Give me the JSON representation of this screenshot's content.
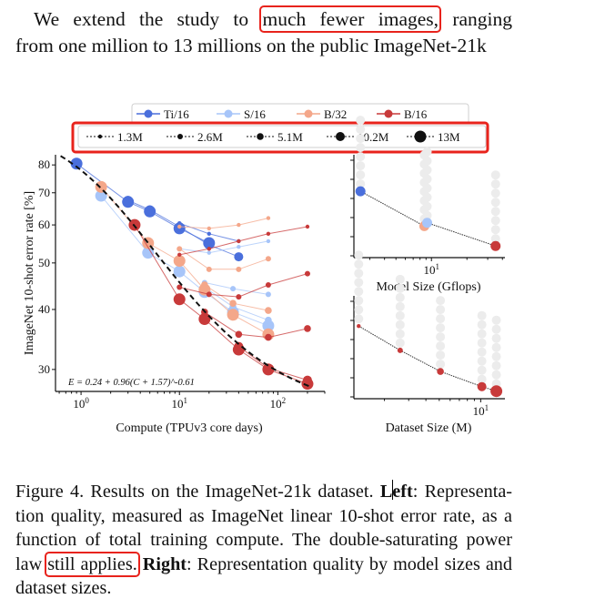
{
  "intro": {
    "line1_before": "We extend the study to",
    "line1_highlight": "much fewer images,",
    "line1_after": "ranging",
    "line2": "from one million to 13 millions on the public ImageNet-21k"
  },
  "caption": {
    "figure_label": "Figure 4. Results on the ImageNet-21k dataset.",
    "left_bold_1": "L",
    "left_bold_2": "eft",
    "left_text": ": Representa-tion quality, measured as ImageNet linear 10-shot error rate, as a function of total training compute. The double-saturating power law",
    "highlight": "still applies.",
    "right_bold": "Right",
    "right_text": ": Representation quality by model sizes and dataset sizes."
  },
  "colors": {
    "Ti/16": "#4a6fdc",
    "S/16": "#a7c5f9",
    "B/32": "#f4a78a",
    "B/16": "#c83a3a",
    "highlight_box": "#e8231c",
    "background_dots": "#ececec",
    "fit_line": "#111111"
  },
  "chart_data": [
    {
      "type": "line",
      "title": "",
      "xlabel": "Compute (TPUv3 core days)",
      "ylabel": "ImageNet 10-shot error rate [%]",
      "xscale": "log",
      "yscale": "log",
      "xlim": [
        0.55,
        300
      ],
      "ylim": [
        27,
        84
      ],
      "xticks": [
        {
          "value": 1,
          "label": "10^0"
        },
        {
          "value": 10,
          "label": "10^1"
        },
        {
          "value": 100,
          "label": "10^2"
        }
      ],
      "yticks": [
        30,
        40,
        50,
        60,
        70,
        80
      ],
      "annotation": "E = 0.24 + 0.96(C + 1.57)^-0.61",
      "fit": {
        "a": 0.24,
        "b": 0.96,
        "c": 1.57,
        "p": -0.61,
        "style": "dashed black"
      },
      "legend_models": [
        "Ti/16",
        "S/16",
        "B/32",
        "B/16"
      ],
      "legend_datasets": [
        "1.3M",
        "2.6M",
        "5.1M",
        "10.2M",
        "13M"
      ],
      "legend_placement": "top",
      "series": [
        {
          "model": "Ti/16",
          "dataset": "13M",
          "x": [
            0.9,
            3,
            5,
            10,
            20
          ],
          "y": [
            80.5,
            67,
            64,
            59,
            55
          ]
        },
        {
          "model": "Ti/16",
          "dataset": "1.3M",
          "x": [
            10,
            20,
            40
          ],
          "y": [
            60.5,
            57.5,
            55.5
          ]
        },
        {
          "model": "Ti/16",
          "dataset": "10.2M",
          "x": [
            3,
            5,
            10,
            20,
            40
          ],
          "y": [
            67.5,
            64.5,
            59.5,
            54.5,
            51.5
          ]
        },
        {
          "model": "S/16",
          "dataset": "13M",
          "x": [
            1.6,
            4.8,
            10,
            18,
            35,
            80
          ],
          "y": [
            69,
            52.5,
            48,
            43.5,
            39.5,
            37
          ]
        },
        {
          "model": "S/16",
          "dataset": "1.3M",
          "x": [
            10,
            20,
            40,
            80
          ],
          "y": [
            53.5,
            52.5,
            54,
            55.5
          ]
        },
        {
          "model": "S/16",
          "dataset": "2.6M",
          "x": [
            18,
            35,
            80
          ],
          "y": [
            45.5,
            44.2,
            43
          ]
        },
        {
          "model": "S/16",
          "dataset": "5.1M",
          "x": [
            18,
            35,
            80
          ],
          "y": [
            44.5,
            40.5,
            38
          ]
        },
        {
          "model": "B/32",
          "dataset": "13M",
          "x": [
            1.6,
            4.8,
            10,
            18,
            35,
            80
          ],
          "y": [
            72,
            55,
            50.5,
            44,
            39,
            35.5
          ]
        },
        {
          "model": "B/32",
          "dataset": "1.3M",
          "x": [
            10,
            20,
            40,
            80
          ],
          "y": [
            59.5,
            59,
            60,
            62
          ]
        },
        {
          "model": "B/32",
          "dataset": "2.6M",
          "x": [
            10,
            20,
            40,
            80
          ],
          "y": [
            53.5,
            48.5,
            48.5,
            51
          ]
        },
        {
          "model": "B/32",
          "dataset": "5.1M",
          "x": [
            18,
            35,
            80
          ],
          "y": [
            45,
            41.2,
            39.8
          ]
        },
        {
          "model": "B/16",
          "dataset": "13M",
          "x": [
            3.5,
            10,
            18,
            40,
            80,
            200
          ],
          "y": [
            60,
            42,
            38.2,
            33,
            30,
            28
          ]
        },
        {
          "model": "B/16",
          "dataset": "1.3M",
          "x": [
            10,
            20,
            40,
            80,
            200
          ],
          "y": [
            52,
            53.5,
            55.5,
            57.5,
            59.5
          ]
        },
        {
          "model": "B/16",
          "dataset": "2.6M",
          "x": [
            10,
            20,
            40,
            80,
            200
          ],
          "y": [
            44.5,
            43,
            42.5,
            45,
            47.5
          ]
        },
        {
          "model": "B/16",
          "dataset": "5.1M",
          "x": [
            18,
            40,
            80,
            200
          ],
          "y": [
            39.5,
            35.5,
            35,
            36.5
          ]
        },
        {
          "model": "B/16",
          "dataset": "10.2M",
          "x": [
            40,
            80,
            200
          ],
          "y": [
            33.5,
            30.2,
            28.5
          ]
        }
      ]
    },
    {
      "type": "scatter",
      "xlabel": "Model Size (Gflops)",
      "xscale": "log",
      "xticks": [
        {
          "value": 10,
          "label": "10^1"
        }
      ],
      "frontier": [
        {
          "model": "Ti/16",
          "x": 2.5,
          "y": 69
        },
        {
          "model": "B/32",
          "x": 8.7,
          "y": 58.5
        },
        {
          "model": "S/16",
          "x": 9.2,
          "y": 59.5
        },
        {
          "model": "B/16",
          "x": 35,
          "y": 52.5
        }
      ],
      "background_points_note": "grey points for other dataset sizes / epochs"
    },
    {
      "type": "scatter",
      "xlabel": "Dataset Size (M)",
      "xscale": "log",
      "xticks": [
        {
          "value": 10,
          "label": "10^1"
        }
      ],
      "frontier": [
        {
          "dataset": "1.3M",
          "x": 1.3,
          "y": 52
        },
        {
          "dataset": "2.6M",
          "x": 2.6,
          "y": 44
        },
        {
          "dataset": "5.1M",
          "x": 5.1,
          "y": 37
        },
        {
          "dataset": "10.2M",
          "x": 10.2,
          "y": 32
        },
        {
          "dataset": "13M",
          "x": 13,
          "y": 30.5
        }
      ]
    }
  ]
}
